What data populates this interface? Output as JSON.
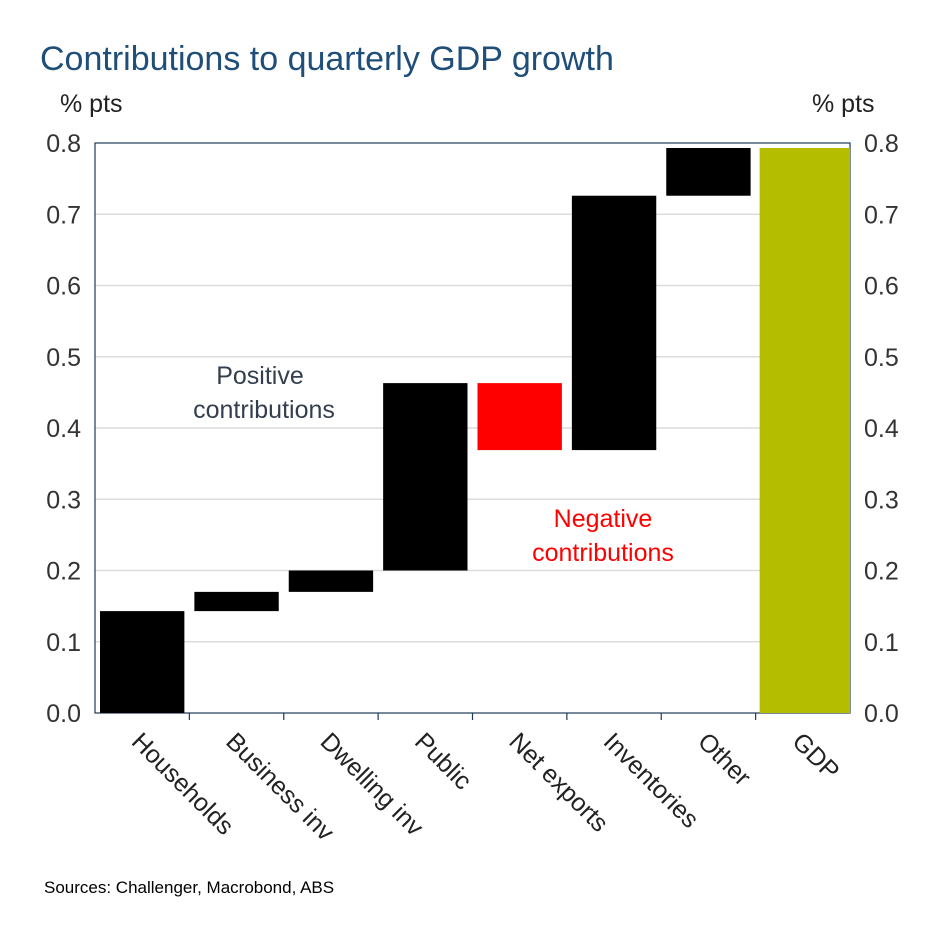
{
  "title": "Contributions to quarterly GDP growth",
  "left_unit": "% pts",
  "right_unit": "% pts",
  "source": "Sources: Challenger, Macrobond, ABS",
  "annotations": {
    "positive": [
      "Positive",
      "contributions"
    ],
    "negative": [
      "Negative",
      "contributions"
    ]
  },
  "colors": {
    "positive": "#000000",
    "negative": "#ff0000",
    "total": "#b5bd00",
    "title": "#1f4e79"
  },
  "chart_data": {
    "type": "waterfall",
    "title": "Contributions to quarterly GDP growth",
    "ylabel": "% pts",
    "ylim": [
      0,
      0.8
    ],
    "yticks": [
      "0.0",
      "0.1",
      "0.2",
      "0.3",
      "0.4",
      "0.5",
      "0.6",
      "0.7",
      "0.8"
    ],
    "grid": true,
    "categories": [
      "Households",
      "Business inv",
      "Dwelling inv",
      "Public",
      "Net exports",
      "Inventories",
      "Other",
      "GDP"
    ],
    "values": [
      0.143,
      0.027,
      0.03,
      0.263,
      -0.094,
      0.357,
      0.067,
      0.793
    ],
    "total_index": 7
  }
}
